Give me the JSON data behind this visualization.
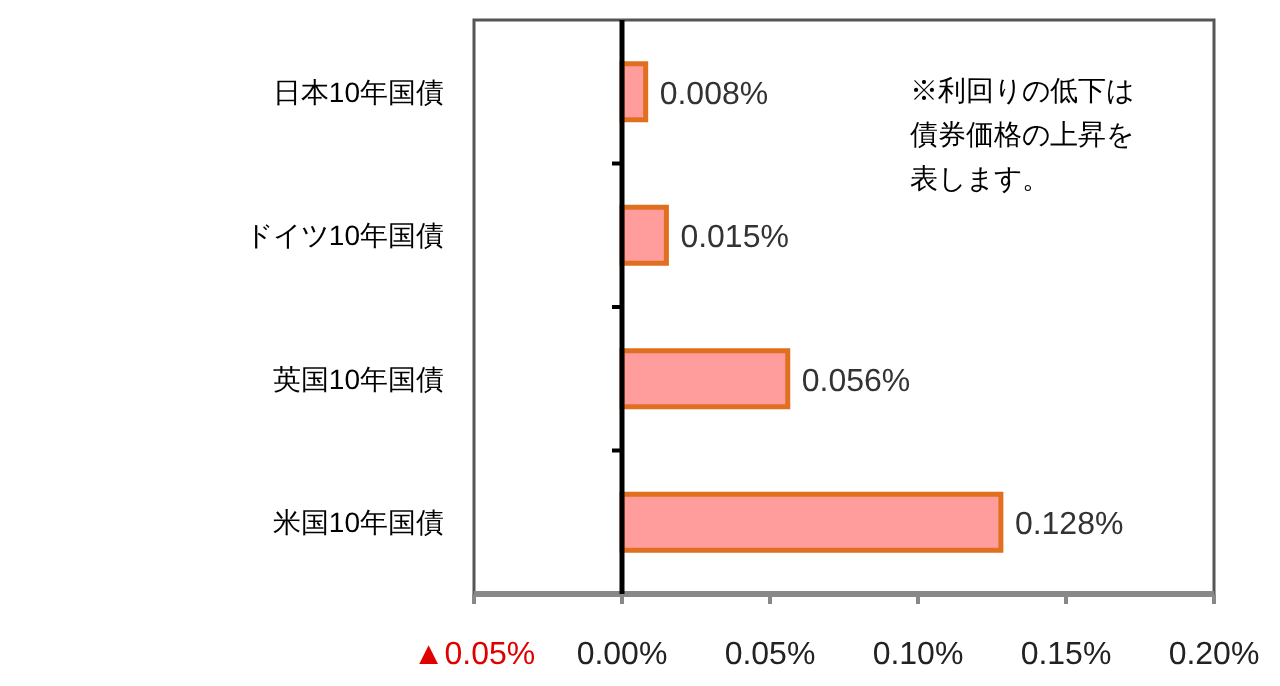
{
  "chart_data": {
    "type": "bar",
    "orientation": "horizontal",
    "categories": [
      "日本10年国債",
      "ドイツ10年国債",
      "英国10年国債",
      "米国10年国債"
    ],
    "values": [
      0.008,
      0.015,
      0.056,
      0.128
    ],
    "value_labels": [
      "0.008%",
      "0.015%",
      "0.056%",
      "0.128%"
    ],
    "color": "#ff9c9c",
    "xlim": [
      -0.05,
      0.2
    ],
    "xticks": [
      {
        "value": -0.05,
        "label": "▲0.05%"
      },
      {
        "value": 0,
        "label": "0.00%"
      },
      {
        "value": 0.05,
        "label": "0.05%"
      },
      {
        "value": 0.1,
        "label": "0.10%"
      },
      {
        "value": 0.15,
        "label": "0.15%"
      },
      {
        "value": 0.2,
        "label": "0.20%"
      }
    ],
    "annotations": [
      "※利回りの低下は",
      "債券価格の上昇を",
      "表します。"
    ]
  }
}
